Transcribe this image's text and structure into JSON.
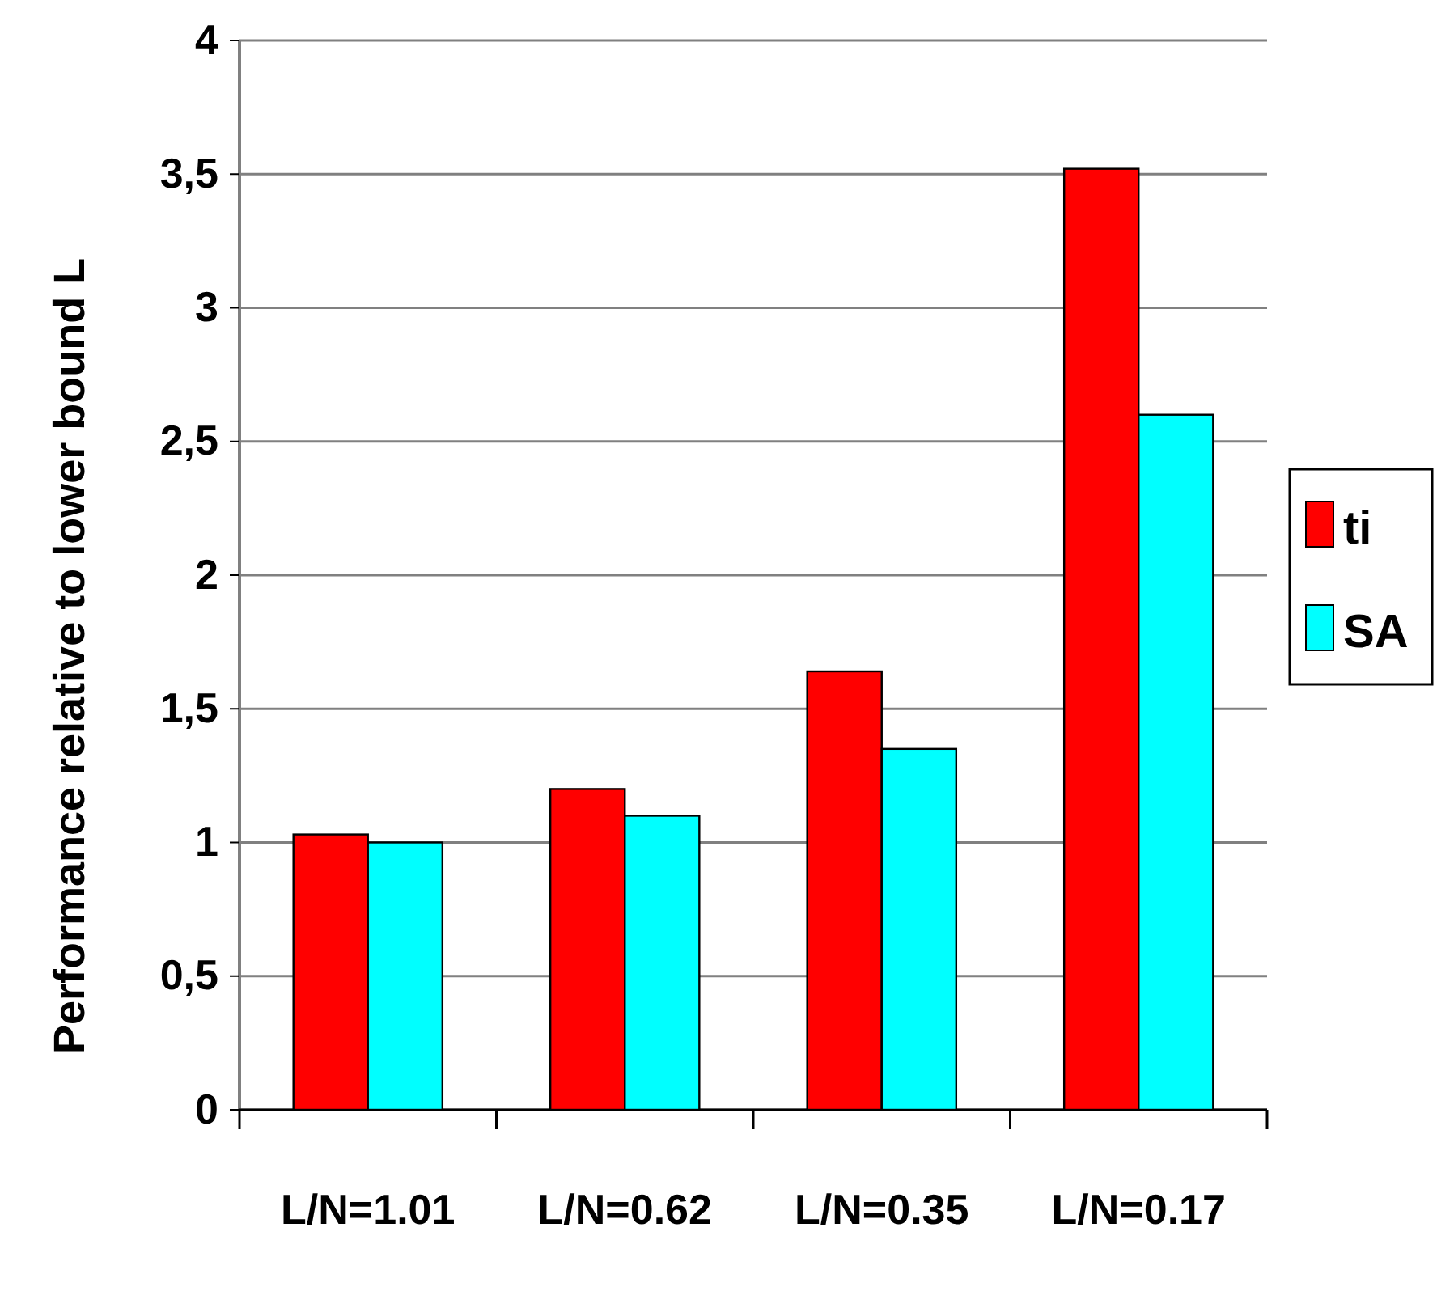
{
  "chart_data": {
    "type": "bar",
    "ylabel": "Performance relative to lower bound L",
    "categories": [
      "L/N=1.01",
      "L/N=0.62",
      "L/N=0.35",
      "L/N=0.17"
    ],
    "series": [
      {
        "name": "ti",
        "color": "#ff0000",
        "values": [
          1.03,
          1.2,
          1.64,
          3.52
        ]
      },
      {
        "name": "SA",
        "color": "#00ffff",
        "values": [
          1.0,
          1.1,
          1.35,
          2.6
        ]
      }
    ],
    "ylim": [
      0,
      4
    ],
    "yticks": [
      0,
      {
        "value": 0.5,
        "label": "0,5"
      },
      1,
      {
        "value": 1.5,
        "label": "1,5"
      },
      2,
      {
        "value": 2.5,
        "label": "2,5"
      },
      3,
      {
        "value": 3.5,
        "label": "3,5"
      },
      4
    ],
    "grid": "y",
    "legend": "right"
  }
}
